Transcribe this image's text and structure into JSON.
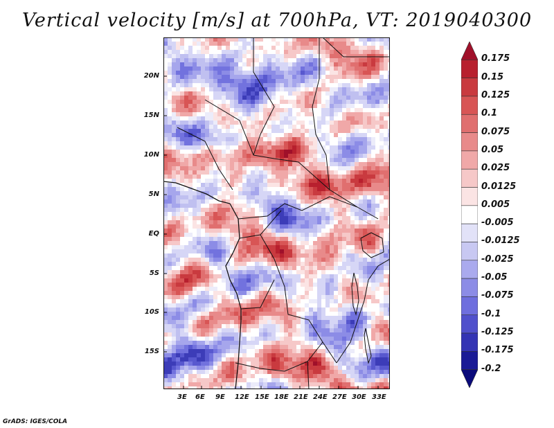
{
  "title": "Vertical velocity [m/s] at 700hPa, VT: 2019040300",
  "credit": "GrADS: IGES/COLA",
  "lat_labels": [
    "20N",
    "15N",
    "10N",
    "5N",
    "EQ",
    "5S",
    "10S",
    "15S"
  ],
  "lon_labels": [
    "3E",
    "6E",
    "9E",
    "12E",
    "15E",
    "18E",
    "21E",
    "24E",
    "27E",
    "30E",
    "33E"
  ],
  "colorbar": {
    "labels": [
      "0.175",
      "0.15",
      "0.125",
      "0.1",
      "0.075",
      "0.05",
      "0.025",
      "0.0125",
      "0.005",
      "-0.005",
      "-0.0125",
      "-0.025",
      "-0.05",
      "-0.075",
      "-0.1",
      "-0.125",
      "-0.175",
      "-0.2"
    ],
    "colors": [
      "#a0102a",
      "#b8202e",
      "#c93a3f",
      "#d85555",
      "#e06f6f",
      "#e88a8a",
      "#f0a8a8",
      "#f6c8c8",
      "#fbe4e4",
      "#ffffff",
      "#e2e2f8",
      "#c8c8f2",
      "#aaaaee",
      "#8c8ce6",
      "#6e6ede",
      "#5050cc",
      "#3434b4",
      "#1a1a96",
      "#0a0a7a"
    ]
  }
}
